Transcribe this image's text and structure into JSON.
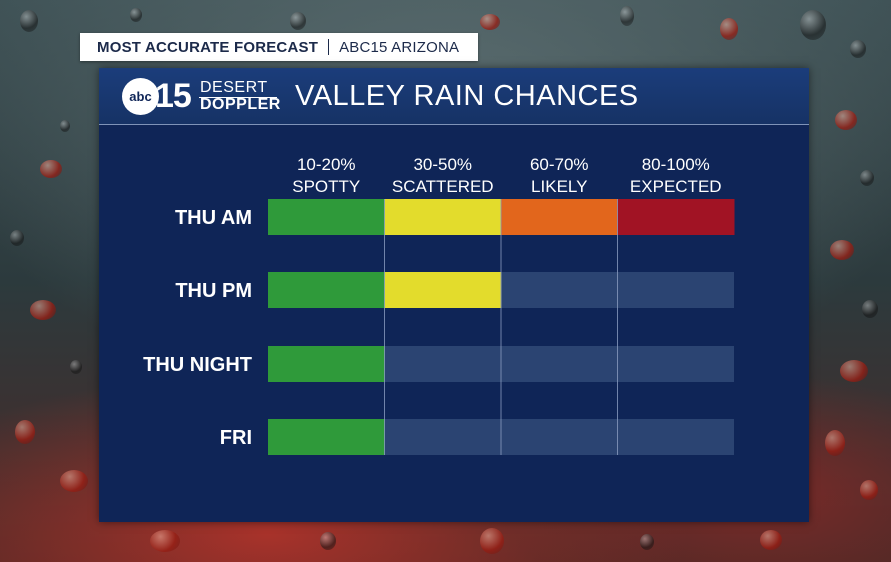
{
  "header_tag": {
    "title": "MOST ACCURATE FORECAST",
    "station": "ABC15 ARIZONA"
  },
  "logo": {
    "network": "abc",
    "channel": "15",
    "line1": "DESERT",
    "line2": "DOPPLER"
  },
  "chart_data": {
    "type": "bar",
    "title": "VALLEY RAIN CHANCES",
    "orientation": "horizontal",
    "grid": true,
    "columns": [
      {
        "range": "10-20%",
        "label": "SPOTTY",
        "color": "#2f9a3a"
      },
      {
        "range": "30-50%",
        "label": "SCATTERED",
        "color": "#e3dc2c"
      },
      {
        "range": "60-70%",
        "label": "LIKELY",
        "color": "#e2661c"
      },
      {
        "range": "80-100%",
        "label": "EXPECTED",
        "color": "#a11324"
      }
    ],
    "categories": [
      "THU AM",
      "THU PM",
      "THU NIGHT",
      "FRI"
    ],
    "values": [
      4,
      2,
      1,
      1
    ],
    "empty_color": "#2b4472",
    "grid_color": "#8a9cc0"
  }
}
